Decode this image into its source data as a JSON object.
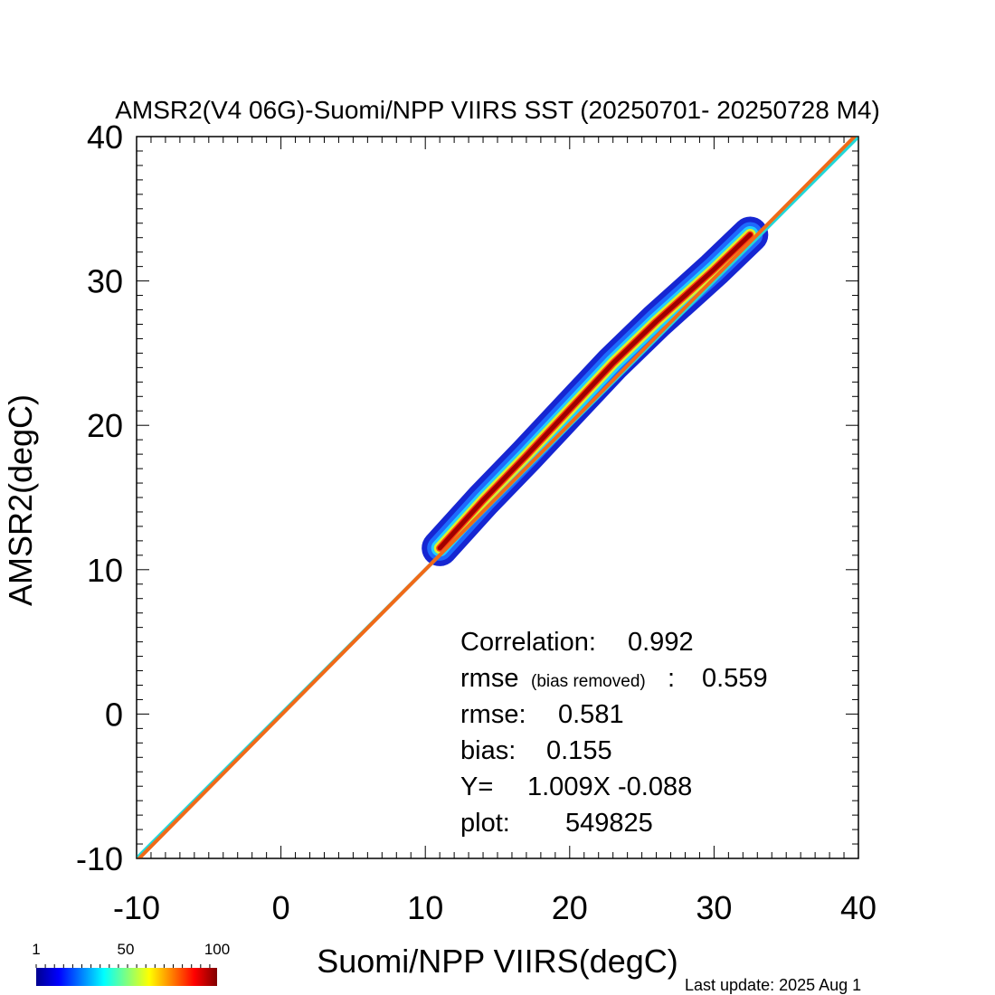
{
  "chart_data": {
    "type": "heatmap",
    "title": "AMSR2(V4 06G)-Suomi/NPP VIIRS SST (20250701- 20250728 M4)",
    "xlabel": "Suomi/NPP VIIRS(degC)",
    "ylabel": "AMSR2(degC)",
    "xlim": [
      -10,
      40
    ],
    "ylim": [
      -10,
      40
    ],
    "x_ticks": [
      "-10",
      "0",
      "10",
      "20",
      "30",
      "40"
    ],
    "y_ticks": [
      "-10",
      "0",
      "10",
      "20",
      "30",
      "40"
    ],
    "x_tick_values": [
      -10,
      0,
      10,
      20,
      30,
      40
    ],
    "y_tick_values": [
      -10,
      0,
      10,
      20,
      30,
      40
    ],
    "minor_tick_step": 1,
    "density_ridge": {
      "x": [
        11,
        14,
        17,
        20,
        23,
        26,
        28,
        30,
        32.5
      ],
      "y": [
        11.5,
        14.8,
        17.9,
        21.1,
        24.3,
        27.2,
        29.0,
        30.8,
        33.2
      ],
      "colormap": "jet"
    },
    "lines": [
      {
        "label": "one-to-one",
        "color": "#22d8d8",
        "slope": 1.0,
        "intercept": 0.0
      },
      {
        "label": "regression",
        "color": "#f06a18",
        "slope": 1.009,
        "intercept": -0.088
      }
    ],
    "stats": {
      "correlation_label": "Correlation:",
      "correlation_value": "0.992",
      "rmse_br_label": "rmse",
      "rmse_br_note": "(bias removed)",
      "rmse_br_colon": ":",
      "rmse_br_value": "0.559",
      "rmse_label": "rmse:",
      "rmse_value": "0.581",
      "bias_label": "bias:",
      "bias_value": "0.155",
      "fit_label": "Y=",
      "fit_value": "1.009X -0.088",
      "count_label": "plot:",
      "count_value": "549825"
    },
    "colorbar": {
      "tick_labels": [
        "1",
        "50",
        "100"
      ],
      "tick_values": [
        1,
        50,
        100
      ],
      "colormap": "jet"
    }
  },
  "footer": {
    "last_update": "Last update: 2025 Aug  1"
  }
}
